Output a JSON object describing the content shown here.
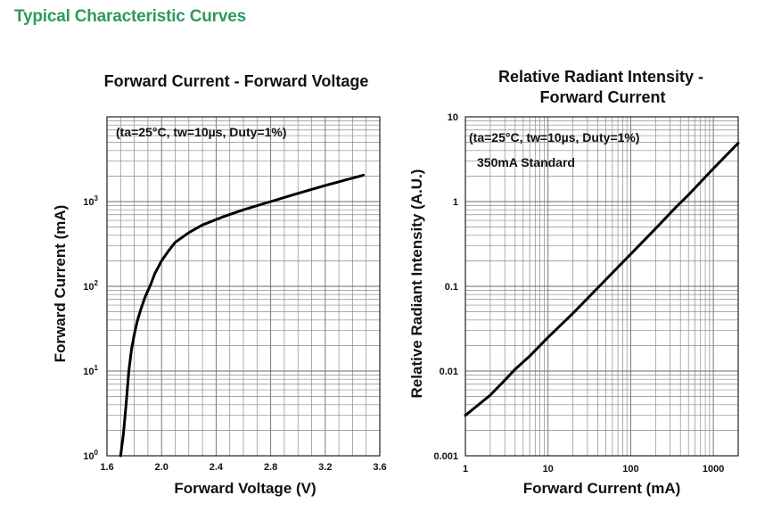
{
  "page": {
    "heading": "Typical Characteristic Curves"
  },
  "chart_data": [
    {
      "type": "line",
      "title": "Forward Current - Forward Voltage",
      "xlabel": "Forward Voltage (V)",
      "ylabel": "Forward Current (mA)",
      "xscale": "linear",
      "yscale": "log",
      "xlim": [
        1.6,
        3.6
      ],
      "ylim": [
        1,
        10000
      ],
      "xticks": [
        1.6,
        2.0,
        2.4,
        2.8,
        3.2,
        3.6
      ],
      "xtick_labels": [
        "1.6",
        "2.0",
        "2.4",
        "2.8",
        "3.2",
        "3.6"
      ],
      "yticks": [
        {
          "value": 1,
          "base": "10",
          "exp": "0"
        },
        {
          "value": 10,
          "base": "10",
          "exp": "1"
        },
        {
          "value": 100,
          "base": "10",
          "exp": "2"
        },
        {
          "value": 1000,
          "base": "10",
          "exp": "3"
        }
      ],
      "grid": true,
      "annotations": [
        "(ta=25°C, tw=10µs, Duty=1%)"
      ],
      "series": [
        {
          "x": [
            1.7,
            1.72,
            1.74,
            1.76,
            1.78,
            1.8,
            1.82,
            1.85,
            1.88,
            1.92,
            1.95,
            2.0,
            2.05,
            2.1,
            2.2,
            2.3,
            2.45,
            2.6,
            2.8,
            3.0,
            3.2,
            3.35,
            3.48
          ],
          "y": [
            1,
            1.8,
            4,
            10,
            18,
            27,
            38,
            55,
            75,
            105,
            140,
            200,
            260,
            330,
            430,
            530,
            660,
            800,
            1000,
            1250,
            1550,
            1800,
            2050
          ]
        }
      ]
    },
    {
      "type": "line",
      "title": "Relative Radiant Intensity - Forward Current",
      "title_lines": [
        "Relative Radiant Intensity -",
        "Forward Current"
      ],
      "xlabel": "Forward Current (mA)",
      "ylabel": "Relative Radiant Intensity (A.U.)",
      "xscale": "log",
      "yscale": "log",
      "xlim": [
        1,
        2000
      ],
      "ylim": [
        0.001,
        10
      ],
      "xticks": [
        1,
        10,
        100,
        1000
      ],
      "xtick_labels": [
        "1",
        "10",
        "100",
        "1000"
      ],
      "yticks": [
        0.001,
        0.01,
        0.1,
        1,
        10
      ],
      "ytick_labels": [
        "0.001",
        "0.01",
        "0.1",
        "1",
        "10"
      ],
      "grid": true,
      "annotations": [
        "(ta=25°C, tw=10µs, Duty=1%)",
        "350mA Standard"
      ],
      "series": [
        {
          "x": [
            1,
            2,
            3,
            4,
            6,
            10,
            20,
            50,
            100,
            200,
            350,
            500,
            1000,
            2000
          ],
          "y": [
            0.003,
            0.0052,
            0.0078,
            0.0105,
            0.015,
            0.025,
            0.048,
            0.12,
            0.24,
            0.48,
            0.85,
            1.2,
            2.45,
            4.9
          ]
        }
      ]
    }
  ]
}
